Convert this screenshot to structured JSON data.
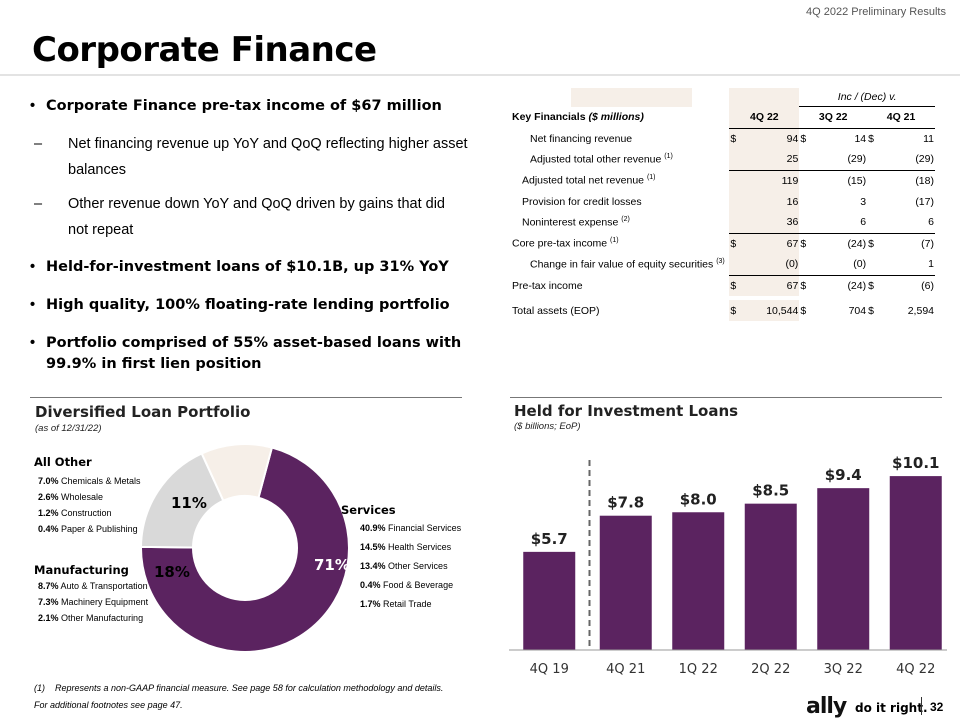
{
  "header": {
    "report_name": "4Q 2022 Preliminary Results",
    "page_title": "Corporate Finance"
  },
  "bullets": {
    "b1": "Corporate Finance pre-tax income of $67 million",
    "b1a": "Net financing revenue up YoY and QoQ reflecting higher asset balances",
    "b1b": "Other revenue down YoY and QoQ driven by gains that did not repeat",
    "b2": "Held-for-investment loans of $10.1B, up 31% YoY",
    "b3": "High quality, 100% floating-rate lending portfolio",
    "b4": "Portfolio comprised of 55% asset-based loans with 99.9% in first lien position"
  },
  "fin_table": {
    "group_header": "Inc / (Dec) v.",
    "title": "Key Financials",
    "title_units": "($ millions)",
    "col_headers": [
      "4Q 22",
      "3Q 22",
      "4Q 21"
    ],
    "rows": [
      {
        "label": "Net financing revenue",
        "sup": "",
        "c1": "94",
        "c2": "14",
        "c3": "11"
      },
      {
        "label": "Adjusted total other revenue",
        "sup": "(1)",
        "c1": "25",
        "c2": "(29)",
        "c3": "(29)"
      },
      {
        "label": "Adjusted total net revenue",
        "sup": "(1)",
        "c1": "119",
        "c2": "(15)",
        "c3": "(18)"
      },
      {
        "label": "Provision for credit losses",
        "sup": "",
        "c1": "16",
        "c2": "3",
        "c3": "(17)"
      },
      {
        "label": "Noninterest expense",
        "sup": "(2)",
        "c1": "36",
        "c2": "6",
        "c3": "6"
      },
      {
        "label": "Core pre-tax income",
        "sup": "(1)",
        "c1": "67",
        "c2": "(24)",
        "c3": "(7)"
      },
      {
        "label": "Change in fair value of equity securities",
        "sup": "(3)",
        "c1": "(0)",
        "c2": "(0)",
        "c3": "1"
      },
      {
        "label": "Pre-tax income",
        "sup": "",
        "c1": "67",
        "c2": "(24)",
        "c3": "(6)"
      },
      {
        "label": "Total assets (EOP)",
        "sup": "",
        "c1": "10,544",
        "c2": "704",
        "c3": "2,594"
      }
    ],
    "currency": "$"
  },
  "loan_portfolio": {
    "title": "Diversified Loan Portfolio",
    "subtitle": "(as of 12/31/22)",
    "slices": [
      {
        "name": "Services",
        "pct_label": "71%",
        "value": 71,
        "color": "#5b2360"
      },
      {
        "name": "Manufacturing",
        "pct_label": "18%",
        "value": 18,
        "color": "#d9d9d9"
      },
      {
        "name": "All Other",
        "pct_label": "11%",
        "value": 11,
        "color": "#f6efe8"
      }
    ],
    "all_other": [
      {
        "pct": "7.0%",
        "label": "Chemicals & Metals"
      },
      {
        "pct": "2.6%",
        "label": "Wholesale"
      },
      {
        "pct": "1.2%",
        "label": "Construction"
      },
      {
        "pct": "0.4%",
        "label": "Paper & Publishing"
      }
    ],
    "manufacturing": [
      {
        "pct": "8.7%",
        "label": "Auto & Transportation"
      },
      {
        "pct": "7.3%",
        "label": "Machinery Equipment"
      },
      {
        "pct": "2.1%",
        "label": "Other Manufacturing"
      }
    ],
    "services": [
      {
        "pct": "40.9%",
        "label": "Financial Services"
      },
      {
        "pct": "14.5%",
        "label": "Health Services"
      },
      {
        "pct": "13.4%",
        "label": "Other Services"
      },
      {
        "pct": "0.4%",
        "label": "Food & Beverage"
      },
      {
        "pct": "1.7%",
        "label": "Retail Trade"
      }
    ]
  },
  "chart_data": {
    "type": "bar",
    "title": "Held for Investment Loans",
    "subtitle": "($ billions; EoP)",
    "categories": [
      "4Q 19",
      "4Q 21",
      "1Q 22",
      "2Q 22",
      "3Q 22",
      "4Q 22"
    ],
    "values": [
      5.7,
      7.8,
      8.0,
      8.5,
      9.4,
      10.1
    ],
    "value_labels": [
      "$5.7",
      "$7.8",
      "$8.0",
      "$8.5",
      "$9.4",
      "$10.1"
    ],
    "ylim": [
      0,
      11.5
    ],
    "bar_color": "#5b2360",
    "divider_after_index": 0
  },
  "footer": {
    "fn1_mark": "(1)",
    "fn1_text": "Represents a non-GAAP financial measure. See page 58 for calculation methodology and details.",
    "fn2_text": "For additional footnotes see page 47.",
    "logo": "ally",
    "tagline": "do it right.",
    "page_number": "32"
  }
}
